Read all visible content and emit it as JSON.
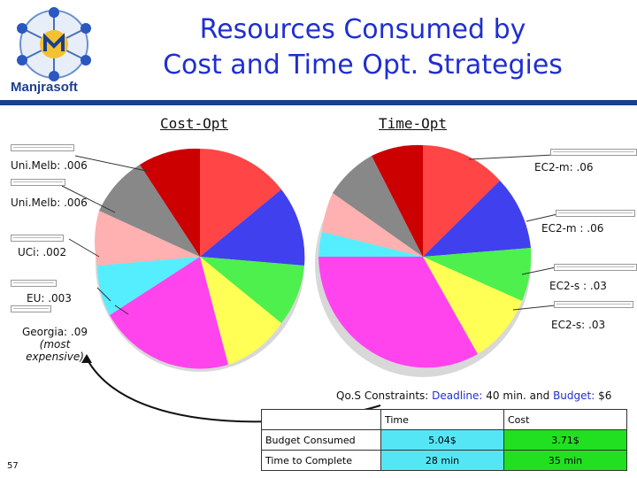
{
  "slide": {
    "title_line1": "Resources Consumed by",
    "title_line2": "Cost and Time Opt. Strategies",
    "logo_text": "Manjrasoft",
    "page_number": "57"
  },
  "columns": {
    "cost_opt": "Cost-Opt",
    "time_opt": "Time-Opt"
  },
  "annotations_left": {
    "unimelb1": "Uni.Melb: .006",
    "unimelb2": "Uni.Melb: .006",
    "uci": "UCi: .002",
    "eu": "EU: .003",
    "georgia_line1": "Georgia: .09",
    "georgia_line2": "(most",
    "georgia_line3": "expensive)"
  },
  "annotations_right": {
    "ec2m1": "EC2-m: .06",
    "ec2m2": "EC2-m : .06",
    "ec2s1": "EC2-s : .03",
    "ec2s2": "EC2-s: .03"
  },
  "qos": {
    "prefix": "Qo.S Constraints:",
    "deadline_label": "Deadline:",
    "deadline_value": "40 min.",
    "and": "and",
    "budget_label": "Budget:",
    "budget_value": "$6"
  },
  "table": {
    "headers": [
      "",
      "Time",
      "Cost"
    ],
    "rows": [
      {
        "label": "Budget Consumed",
        "time": "5.04$",
        "cost": "3.71$"
      },
      {
        "label": "Time to Complete",
        "time": "28 min",
        "cost": "35 min"
      }
    ]
  },
  "colors": {
    "title": "#1f2fd0",
    "accent_bar": "#1c3f8f",
    "cell_cyan": "#55e6f6",
    "cell_green": "#21e021"
  }
}
